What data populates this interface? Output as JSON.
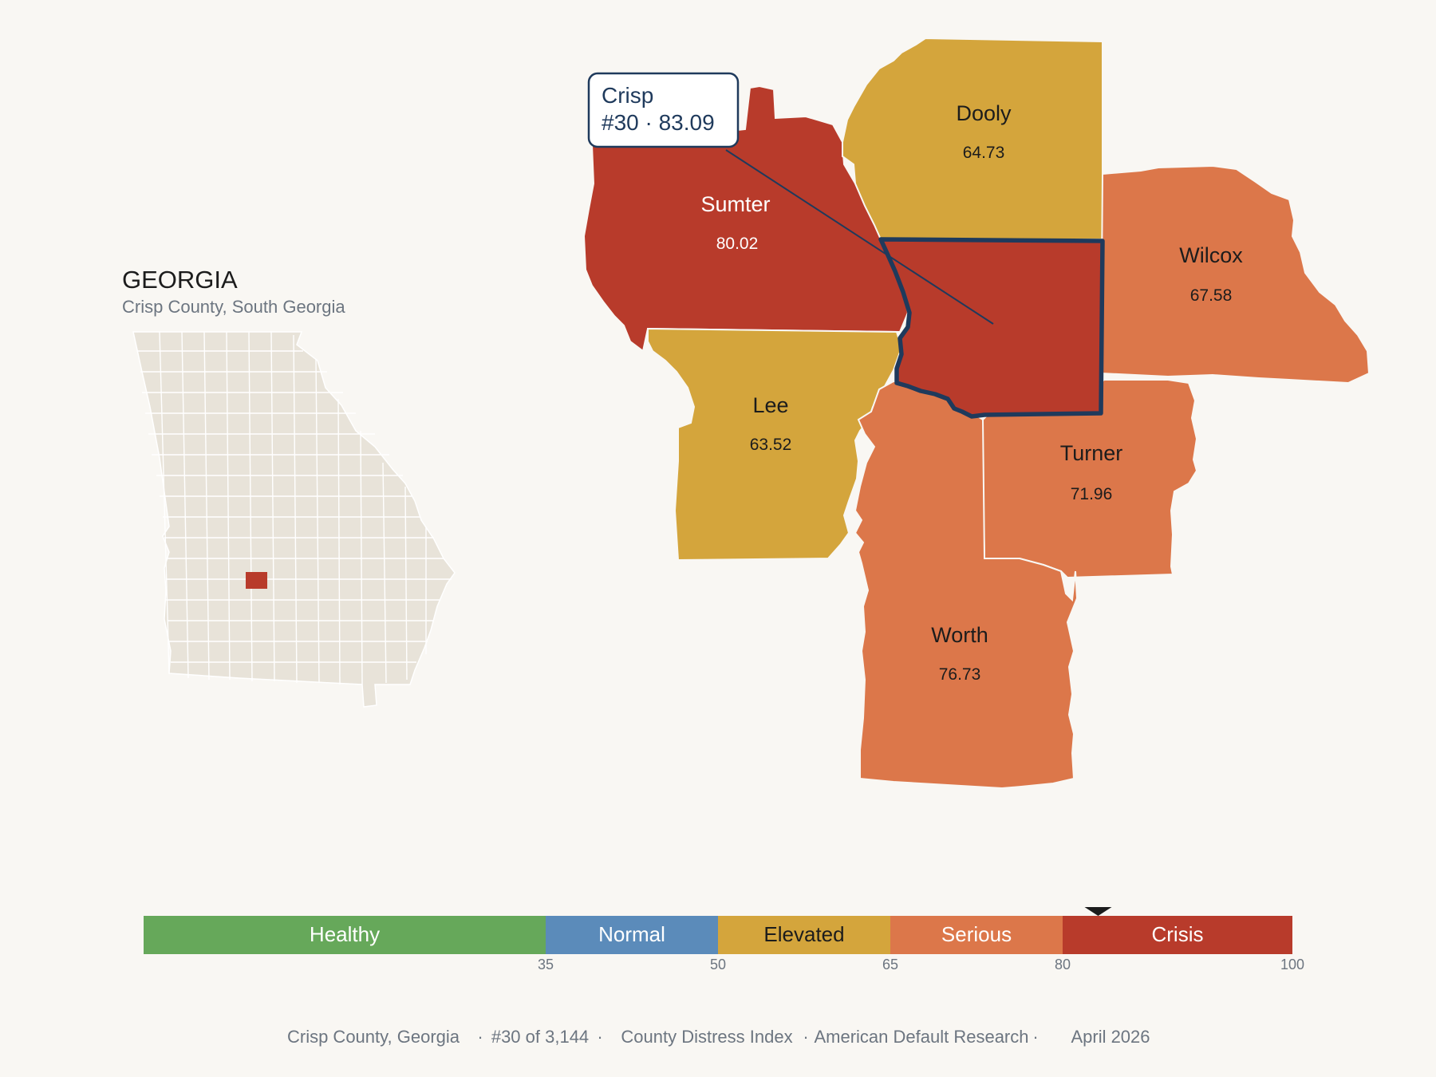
{
  "inset": {
    "state_title": "GEORGIA",
    "subtitle": "Crisp County, South Georgia"
  },
  "callout": {
    "name": "Crisp",
    "detail": "#30 · 83.09"
  },
  "colors": {
    "crisis": "#b83b2b",
    "serious": "#dc774a",
    "elevated": "#d4a53c",
    "normal": "#5b8bba",
    "healthy": "#66a85a",
    "highlight_border": "#1f3a5c",
    "state_fill": "#e8e3d9"
  },
  "counties": {
    "sumter": {
      "name": "Sumter",
      "score": "80.02",
      "category": "Crisis"
    },
    "dooly": {
      "name": "Dooly",
      "score": "64.73",
      "category": "Elevated"
    },
    "wilcox": {
      "name": "Wilcox",
      "score": "67.58",
      "category": "Serious"
    },
    "lee": {
      "name": "Lee",
      "score": "63.52",
      "category": "Elevated"
    },
    "turner": {
      "name": "Turner",
      "score": "71.96",
      "category": "Serious"
    },
    "worth": {
      "name": "Worth",
      "score": "76.73",
      "category": "Serious"
    },
    "crisp": {
      "name": "Crisp",
      "score": "83.09",
      "category": "Crisis"
    }
  },
  "scale": {
    "bands": [
      "Healthy",
      "Normal",
      "Elevated",
      "Serious",
      "Crisis"
    ],
    "ticks": [
      "35",
      "50",
      "65",
      "80",
      "100"
    ]
  },
  "marker_value": 83.09,
  "footer": {
    "county": "Crisp County, Georgia",
    "rank": "#30 of 3,144",
    "index": "County Distress Index",
    "source": "American Default Research",
    "date": "April 2026",
    "separator": "·"
  }
}
